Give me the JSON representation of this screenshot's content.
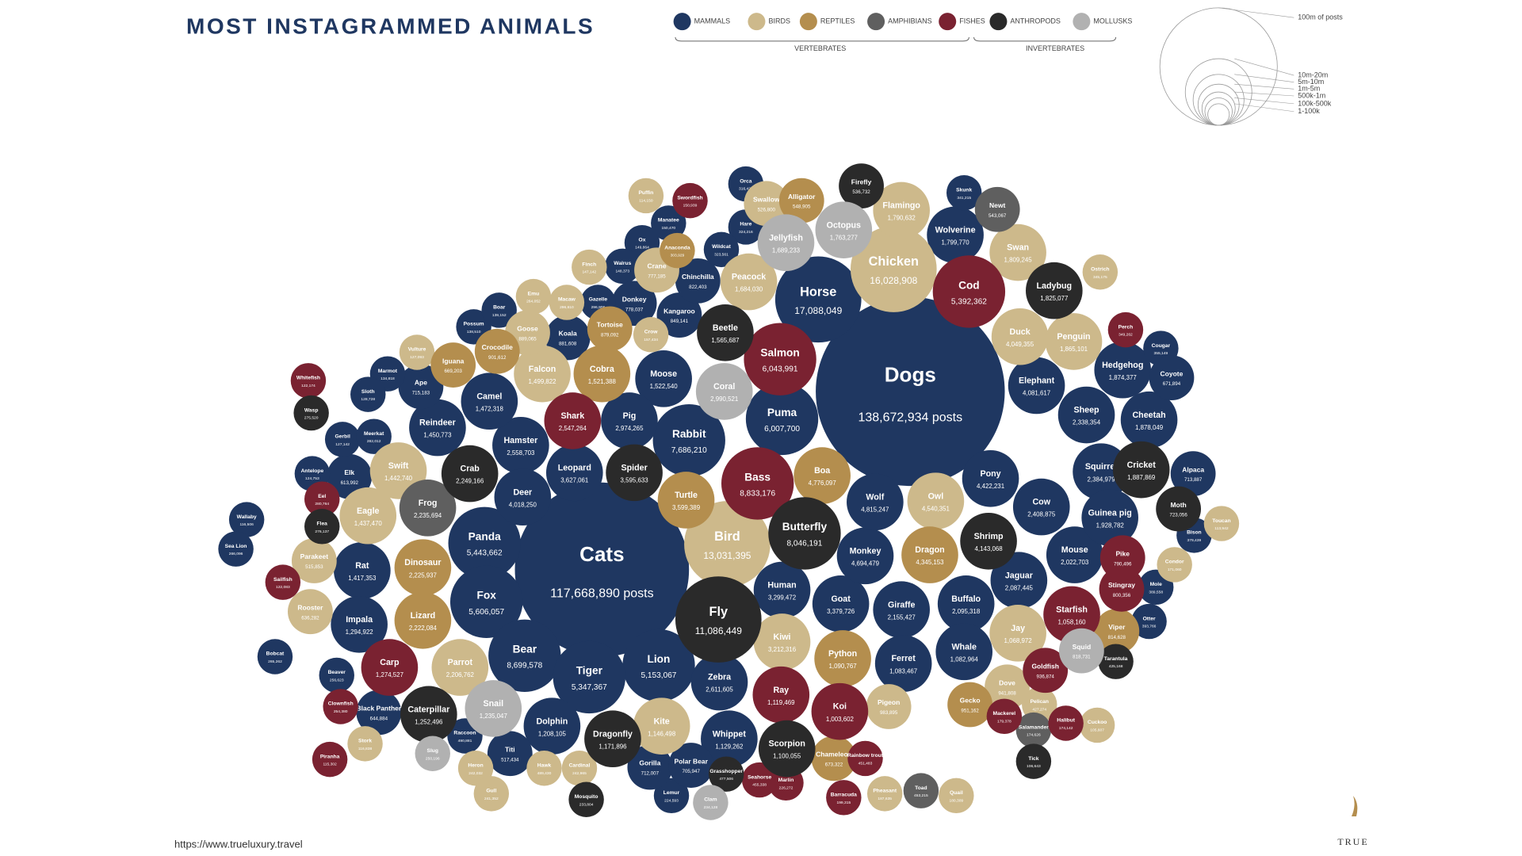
{
  "chart_data": {
    "type": "packed_bubble",
    "title": "MOST INSTAGRAMMED ANIMALS",
    "legend_groups": [
      "VERTEBRATES",
      "INVERTEBRATES"
    ],
    "size_legend": [
      "100m of posts",
      "10m-20m",
      "5m-10m",
      "1m-5m",
      "500k-1m",
      "100k-500k",
      "1-100k"
    ],
    "source": "https://www.trueluxury.travel",
    "brand": "TRUE",
    "series": [
      {
        "name": "MAMMALS",
        "color": "#1f3761",
        "labels": [
          "Dogs",
          "Cats",
          "Horse",
          "Panda",
          "Fox",
          "Bear",
          "Lion",
          "Tiger",
          "Rabbit",
          "Puma",
          "Leopard",
          "Hamster",
          "Deer",
          "Camel",
          "Reindeer",
          "Rat",
          "Impala",
          "Moose",
          "Pig",
          "Koala",
          "Human",
          "Goat",
          "Giraffe",
          "Buffalo",
          "Monkey",
          "Wolf",
          "Zebra",
          "Dolphin",
          "Whippet",
          "Ferret",
          "Whale",
          "Jaguar",
          "Mouse",
          "Cow",
          "Squirrel",
          "Guinea pig",
          "Alpaca",
          "Cheetah",
          "Sheep",
          "Hedgehog",
          "Elephant",
          "Pony",
          "Wolverine",
          "Kangaroo",
          "Lemur",
          "Gorilla",
          "Titi",
          "Raccoon",
          "Wallaby",
          "Sea Lion",
          "Bobcat",
          "Beaver",
          "Black Panther",
          "Ape",
          "Elk",
          "Antelope",
          "Gerbil",
          "Meerkat",
          "Hare",
          "Ox",
          "Walrus",
          "Otter",
          "Skunk",
          "Chinchilla",
          "Donkey",
          "Gazelle",
          "Manatee",
          "Orca",
          "Wildcat",
          "Possum",
          "Boar",
          "Mole",
          "Bison",
          "Cougar",
          "Coyote",
          "Polar Bear",
          "Marmot",
          "Sloth"
        ],
        "values": [
          138672934,
          117668890,
          17088049,
          5443662,
          5606057,
          8699578,
          5153067,
          5347367,
          7686210,
          6007700,
          3627061,
          2558703,
          4018250,
          1472318,
          1450773,
          1417353,
          1294922,
          1522540,
          2974265,
          881608,
          3299472,
          3379726,
          2155427,
          2095318,
          4694479,
          4815247,
          2611605,
          1208105,
          1129262,
          1083467,
          1082964,
          2087445,
          2022703,
          2408875,
          2384979,
          1928782,
          713887,
          1878049,
          2338354,
          1874377,
          4081617,
          4422231,
          1799770,
          849141,
          224593,
          712007,
          517434,
          490881,
          116506,
          266096,
          265262,
          256623,
          644884,
          715183,
          613992,
          124753,
          127142,
          282012,
          324216,
          149864,
          148373,
          393766,
          341215,
          822403,
          778037,
          296906,
          150470,
          316428,
          323561,
          138510,
          139152,
          389558,
          379439,
          355149,
          671894,
          705947,
          134818,
          128728
        ],
        "value_labels": [
          "138,672,934 posts",
          "117,668,890 posts",
          "17,088,049",
          "5,443,662",
          "5,606,057",
          "8,699,578",
          "5,153,067",
          "5,347,367",
          "7,686,210",
          "6,007,700",
          "3,627,061",
          "2,558,703",
          "4,018,250",
          "1,472,318",
          "1,450,773",
          "1,417,353",
          "1,294,922",
          "1,522,540",
          "2,974,265",
          "881,608",
          "3,299,472",
          "3,379,726",
          "2,155,427",
          "2,095,318",
          "4,694,479",
          "4,815,247",
          "2,611,605",
          "1,208,105",
          "1,129,262",
          "1,083,467",
          "1,082,964",
          "2,087,445",
          "2,022,703",
          "2,408,875",
          "2,384,979",
          "1,928,782",
          "713,887",
          "1,878,049",
          "2,338,354",
          "1,874,377",
          "4,081,617",
          "4,422,231",
          "1,799,770",
          "849,141",
          "224,593",
          "712,007",
          "517,434",
          "490,881",
          "116,506",
          "266,096",
          "265,262",
          "256,623",
          "644,884",
          "715,183",
          "613,992",
          "124,753",
          "127,142",
          "282,012",
          "324,216",
          "149,864",
          "148,373",
          "393,766",
          "341,215",
          "822,403",
          "778,037",
          "296,906",
          "150,470",
          "316,428",
          "323,561",
          "138,510",
          "139,152",
          "389,558",
          "379,439",
          "355,149",
          "671,894",
          "705,947",
          "134,818",
          "128,728"
        ]
      },
      {
        "name": "BIRDS",
        "color": "#cdb98b",
        "labels": [
          "Chicken",
          "Bird",
          "Swift",
          "Eagle",
          "Falcon",
          "Goose",
          "Peacock",
          "Flamingo",
          "Owl",
          "Kiwi",
          "Parrot",
          "Swan",
          "Duck",
          "Penguin",
          "Jay",
          "Kite",
          "Pigeon",
          "Dove",
          "Parakeet",
          "Crow",
          "Vulture",
          "Macaw",
          "Emu",
          "Finch",
          "Crane",
          "Heron",
          "Hawk",
          "Stork",
          "Rooster",
          "Quail",
          "Pheasant",
          "Cardinal",
          "Gull",
          "Ostrich",
          "Toucan",
          "Condor",
          "Swallow",
          "Puffin",
          "Pelican",
          "Cuckoo"
        ],
        "values": [
          16028908,
          13031395,
          1442740,
          1437470,
          1499822,
          889065,
          1684030,
          1790632,
          4540351,
          3212316,
          2206762,
          1809245,
          4049355,
          1865101,
          1068972,
          1146498,
          983895,
          941808,
          515853,
          157434,
          127093,
          296610,
          264052,
          147142,
          777185,
          242032,
          489430,
          116838,
          636282,
          180309,
          187635,
          242965,
          241352,
          345175,
          113942,
          171060,
          526800,
          114150,
          427274,
          105607
        ],
        "value_labels": [
          "16,028,908",
          "13,031,395",
          "1,442,740",
          "1,437,470",
          "1,499,822",
          "889,065",
          "1,684,030",
          "1,790,632",
          "4,540,351",
          "3,212,316",
          "2,206,762",
          "1,809,245",
          "4,049,355",
          "1,865,101",
          "1,068,972",
          "1,146,498",
          "983,895",
          "941,808",
          "515,853",
          "157,434",
          "127,093",
          "296,610",
          "264,052",
          "147,142",
          "777,185",
          "242,032",
          "489,430",
          "116,838",
          "636,282",
          "180,309",
          "187,635",
          "242,965",
          "241,352",
          "345,175",
          "113,942",
          "171,060",
          "526,800",
          "114,150",
          "427,274",
          "105,607"
        ]
      },
      {
        "name": "REPTILES",
        "color": "#b48e4e",
        "labels": [
          "Turtle",
          "Boa",
          "Dragon",
          "Dinosaur",
          "Lizard",
          "Python",
          "Cobra",
          "Iguana",
          "Alligator",
          "Chameleon",
          "Crocodile",
          "Gecko",
          "Anaconda",
          "Tortoise",
          "Viper"
        ],
        "values": [
          3599389,
          4776097,
          4345153,
          2225937,
          2222084,
          1090767,
          1521388,
          669203,
          548905,
          673322,
          901612,
          951162,
          303929,
          879092,
          814628
        ],
        "value_labels": [
          "3,599,389",
          "4,776,097",
          "4,345,153",
          "2,225,937",
          "2,222,084",
          "1,090,767",
          "1,521,388",
          "669,203",
          "548,905",
          "673,322",
          "901,612",
          "951,162",
          "303,929",
          "879,092",
          "814,628"
        ]
      },
      {
        "name": "AMPHIBIANS",
        "color": "#5f5f5f",
        "labels": [
          "Frog",
          "Salamander",
          "Toad",
          "Newt"
        ],
        "values": [
          2235694,
          174626,
          453215,
          543067
        ],
        "value_labels": [
          "2,235,694",
          "174,626",
          "453,215",
          "543,067"
        ]
      },
      {
        "name": "FISHES",
        "color": "#7a2231",
        "labels": [
          "Cod",
          "Salmon",
          "Shark",
          "Bass",
          "Carp",
          "Ray",
          "Koi",
          "Starfish",
          "Stingray",
          "Goldfish",
          "Pike",
          "Piranha",
          "Eel",
          "Halibut",
          "Perch",
          "Barracuda",
          "Marlin",
          "Whitefish",
          "Clownfish",
          "Sailfish",
          "Swordfish",
          "Mackerel",
          "Seahorse",
          "Rainbow trout"
        ],
        "values": [
          5392362,
          6043991,
          2547264,
          8833176,
          1274527,
          1119469,
          1003602,
          1058160,
          800356,
          936874,
          790496,
          115302,
          280764,
          174142,
          349262,
          199315,
          226272,
          122174,
          254380,
          122083,
          150939,
          179378,
          455338,
          451483
        ],
        "value_labels": [
          "5,392,362",
          "6,043,991",
          "2,547,264",
          "8,833,176",
          "1,274,527",
          "1,119,469",
          "1,003,602",
          "1,058,160",
          "800,356",
          "936,874",
          "790,496",
          "115,302",
          "280,764",
          "174,142",
          "349,262",
          "199,315",
          "226,272",
          "122,174",
          "254,380",
          "122,083",
          "150,939",
          "179,378",
          "455,338",
          "451,483"
        ]
      },
      {
        "name": "ANTHROPODS",
        "color": "#2a2a2a",
        "labels": [
          "Fly",
          "Spider",
          "Crab",
          "Butterfly",
          "Scorpion",
          "Shrimp",
          "Ladybug",
          "Cricket",
          "Caterpillar",
          "Dragonfly",
          "Beetle",
          "Firefly",
          "Wasp",
          "Flea",
          "Moth",
          "Mosquito",
          "Grasshopper",
          "Tick",
          "Tarantula"
        ],
        "values": [
          11086449,
          3595633,
          2249166,
          8046191,
          1100055,
          4143068,
          1825077,
          1887869,
          1252496,
          1171896,
          1565687,
          536732,
          275520,
          276137,
          723056,
          233804,
          477506,
          106643,
          425168
        ],
        "value_labels": [
          "11,086,449",
          "3,595,633",
          "2,249,166",
          "8,046,191",
          "1,100,055",
          "4,143,068",
          "1,825,077",
          "1,887,869",
          "1,252,496",
          "1,171,896",
          "1,565,687",
          "536,732",
          "275,520",
          "276,137",
          "723,056",
          "233,804",
          "477,506",
          "106,643",
          "425,168"
        ]
      },
      {
        "name": "MOLLUSKS",
        "color": "#b1b1b1",
        "labels": [
          "Coral",
          "Octopus",
          "Jellyfish",
          "Snail",
          "Squid",
          "Clam",
          "Slug"
        ],
        "values": [
          2990521,
          1763277,
          1689233,
          1235047,
          818731,
          234128,
          250196
        ],
        "value_labels": [
          "2,990,521",
          "1,763,277",
          "1,689,233",
          "1,235,047",
          "818,731",
          "234,128",
          "250,196"
        ]
      }
    ]
  }
}
